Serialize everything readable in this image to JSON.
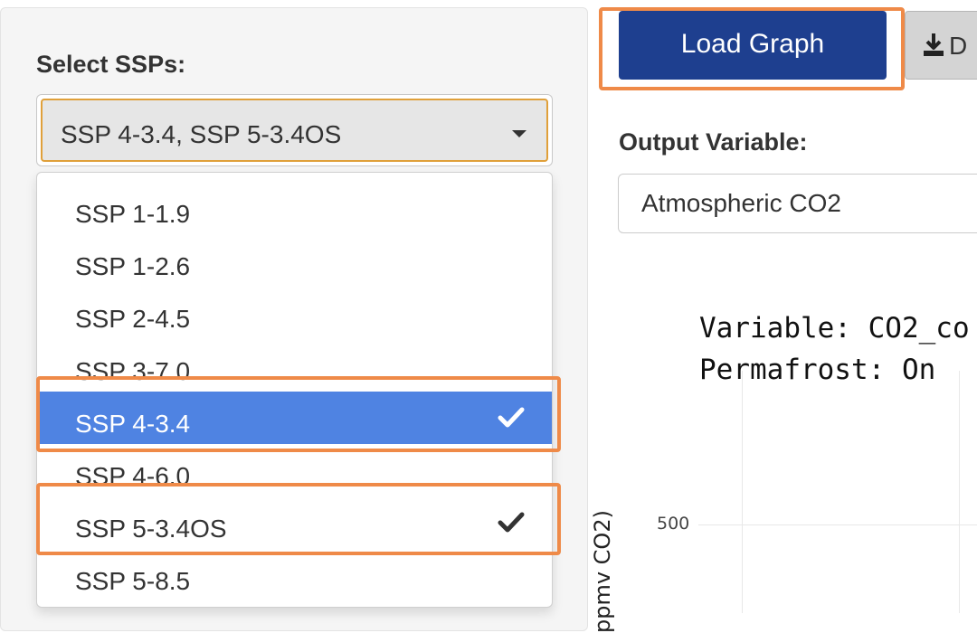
{
  "left": {
    "ssp_label": "Select SSPs:",
    "selected_text": "SSP 4-3.4, SSP 5-3.4OS",
    "options": [
      {
        "label": "SSP 1-1.9",
        "selected": false
      },
      {
        "label": "SSP 1-2.6",
        "selected": false
      },
      {
        "label": "SSP 2-4.5",
        "selected": false
      },
      {
        "label": "SSP 3-7.0",
        "selected": false
      },
      {
        "label": "SSP 4-3.4",
        "selected": true
      },
      {
        "label": "SSP 4-6.0",
        "selected": false
      },
      {
        "label": "SSP 5-3.4OS",
        "selected": true
      },
      {
        "label": "SSP 5-8.5",
        "selected": false
      }
    ]
  },
  "right": {
    "load_button": "Load Graph",
    "download_button": "D",
    "output_label": "Output Variable:",
    "output_value": "Atmospheric CO2",
    "chart_title_line1": "Variable: CO2_co",
    "chart_title_line2": "Permafrost: On",
    "y_tick": "500",
    "y_label": "ppmv CO2)"
  },
  "colors": {
    "accent_highlight": "#ef8a48",
    "selected_option_bg": "#4f83e2",
    "load_button_bg": "#1e3f8f"
  },
  "icons": {
    "caret": "caret-down-icon",
    "check": "check-icon",
    "download": "download-icon"
  }
}
